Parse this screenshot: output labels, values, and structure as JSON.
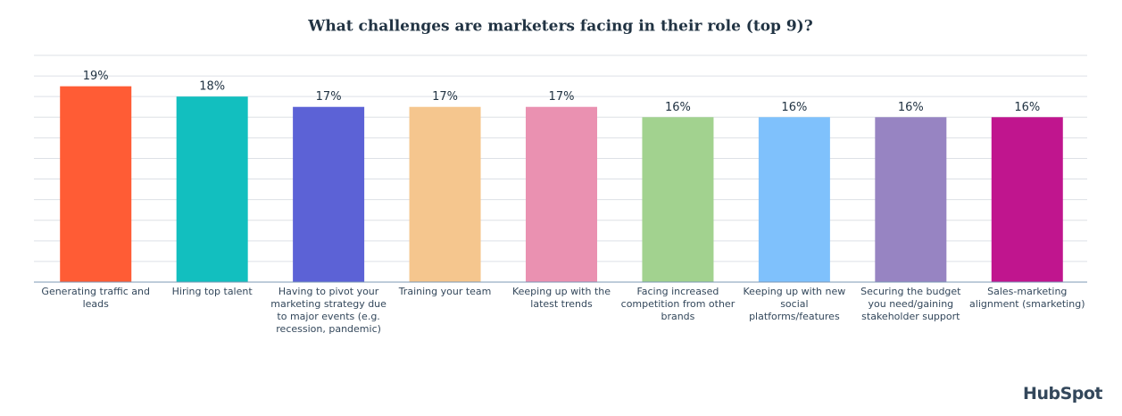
{
  "chart_data": {
    "type": "bar",
    "title": "What challenges are marketers facing in their role (top 9)?",
    "categories": [
      "Generating traffic and leads",
      "Hiring top talent",
      "Having to pivot your marketing strategy due to major events (e.g. recession, pandemic)",
      "Training your team",
      "Keeping up with the latest trends",
      "Facing increased competition from other brands",
      "Keeping up with new social platforms/features",
      "Securing the budget you need/gaining stakeholder support",
      "Sales-marketing alignment (smarketing)"
    ],
    "values": [
      19,
      18,
      17,
      17,
      17,
      16,
      16,
      16,
      16
    ],
    "value_labels": [
      "19%",
      "18%",
      "17%",
      "17%",
      "17%",
      "16%",
      "16%",
      "16%",
      "16%"
    ],
    "colors": [
      "#ff5c35",
      "#12bfbf",
      "#5c62d6",
      "#f5c68e",
      "#ea91b1",
      "#a2d28f",
      "#7fc1fc",
      "#9784c2",
      "#c0158e"
    ],
    "ylim": [
      0,
      22
    ],
    "yticks": [
      0,
      2,
      4,
      6,
      8,
      10,
      12,
      14,
      16,
      18,
      20,
      22
    ],
    "grid": true,
    "logo": "HubSpot"
  }
}
